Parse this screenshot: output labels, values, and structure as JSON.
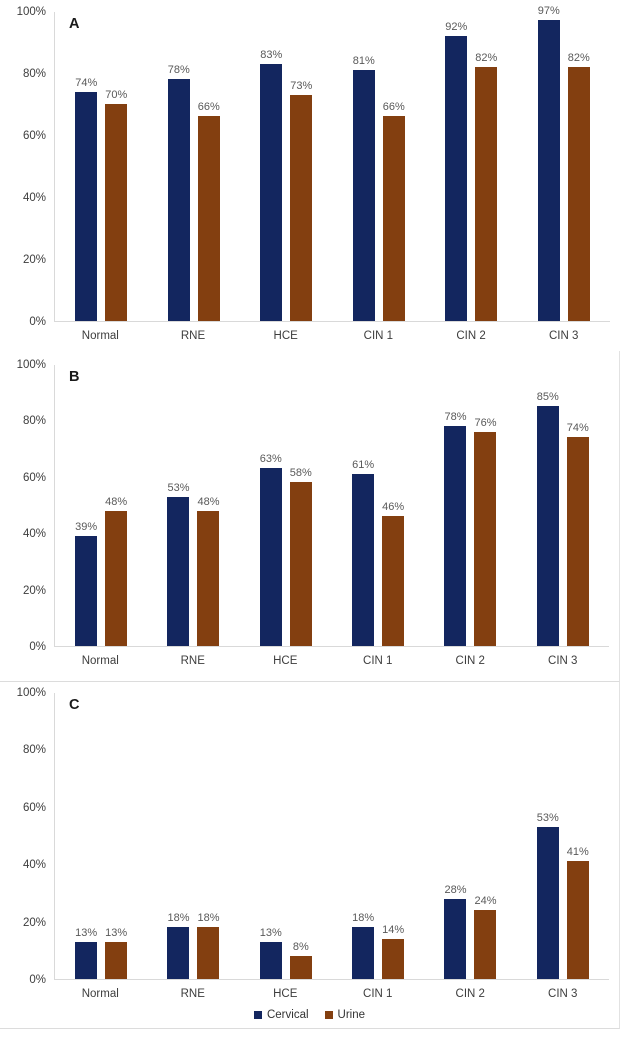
{
  "colors": {
    "cervical": "#13265f",
    "urine": "#833f10",
    "axis_line": "#d9d9d9",
    "data_label": "#595959",
    "tick_label": "#3d3d3d"
  },
  "legend": {
    "items": [
      {
        "label": "Cervical",
        "color": "#13265f"
      },
      {
        "label": "Urine",
        "color": "#833f10"
      }
    ],
    "position": "bottom-center"
  },
  "chart_data": [
    {
      "type": "bar",
      "panel_label": "A",
      "categories": [
        "Normal",
        "RNE",
        "HCE",
        "CIN 1",
        "CIN 2",
        "CIN 3"
      ],
      "series": [
        {
          "name": "Cervical",
          "color": "#13265f",
          "values": [
            74,
            78,
            83,
            81,
            92,
            97
          ]
        },
        {
          "name": "Urine",
          "color": "#833f10",
          "values": [
            70,
            66,
            73,
            66,
            82,
            82
          ]
        }
      ],
      "ylim": [
        0,
        100
      ],
      "yticks": [
        "0%",
        "20%",
        "40%",
        "60%",
        "80%",
        "100%"
      ],
      "data_label_suffix": "%",
      "grid": false,
      "legend_position": "none"
    },
    {
      "type": "bar",
      "panel_label": "B",
      "categories": [
        "Normal",
        "RNE",
        "HCE",
        "CIN 1",
        "CIN 2",
        "CIN 3"
      ],
      "series": [
        {
          "name": "Cervical",
          "color": "#13265f",
          "values": [
            39,
            53,
            63,
            61,
            78,
            85
          ]
        },
        {
          "name": "Urine",
          "color": "#833f10",
          "values": [
            48,
            48,
            58,
            46,
            76,
            74
          ]
        }
      ],
      "ylim": [
        0,
        100
      ],
      "yticks": [
        "0%",
        "20%",
        "40%",
        "60%",
        "80%",
        "100%"
      ],
      "data_label_suffix": "%",
      "grid": false,
      "legend_position": "none"
    },
    {
      "type": "bar",
      "panel_label": "C",
      "categories": [
        "Normal",
        "RNE",
        "HCE",
        "CIN 1",
        "CIN 2",
        "CIN 3"
      ],
      "series": [
        {
          "name": "Cervical",
          "color": "#13265f",
          "values": [
            13,
            18,
            13,
            18,
            28,
            53
          ]
        },
        {
          "name": "Urine",
          "color": "#833f10",
          "values": [
            13,
            18,
            8,
            14,
            24,
            41
          ]
        }
      ],
      "ylim": [
        0,
        100
      ],
      "yticks": [
        "0%",
        "20%",
        "40%",
        "60%",
        "80%",
        "100%"
      ],
      "data_label_suffix": "%",
      "grid": false,
      "legend_position": "bottom-center"
    }
  ]
}
